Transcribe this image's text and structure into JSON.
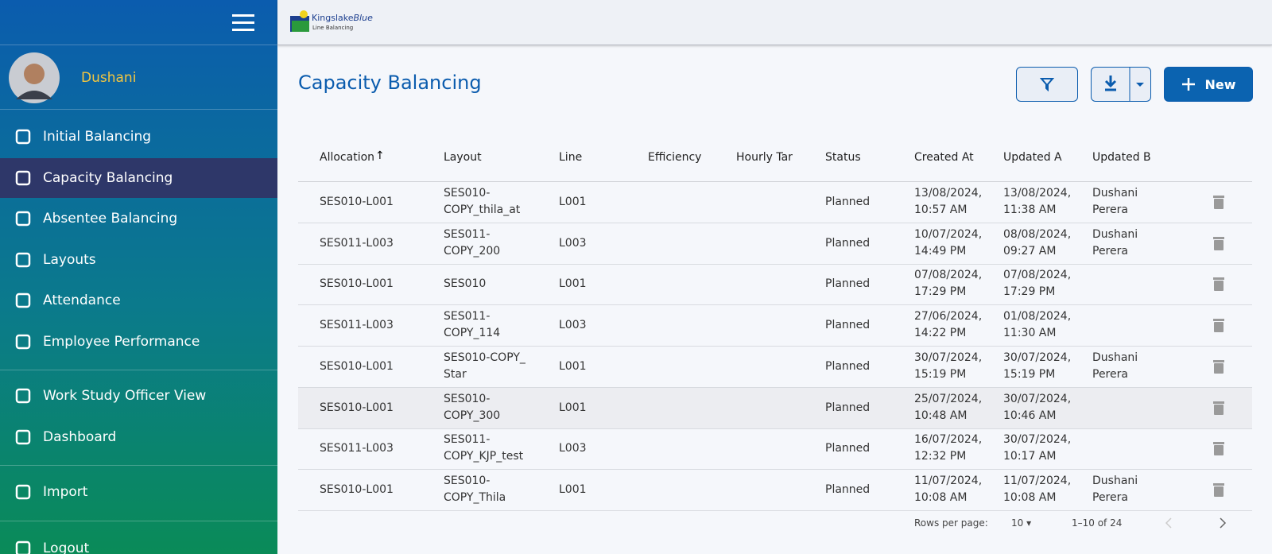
{
  "user": {
    "name": "Dushani"
  },
  "nav": [
    {
      "label": "Initial Balancing"
    },
    {
      "label": "Capacity Balancing"
    },
    {
      "label": "Absentee Balancing"
    },
    {
      "label": "Layouts"
    },
    {
      "label": "Attendance"
    },
    {
      "label": "Employee Performance"
    },
    {
      "label": "Work Study Officer View"
    },
    {
      "label": "Dashboard"
    },
    {
      "label": "Import"
    },
    {
      "label": "Logout"
    }
  ],
  "header": {
    "logo_name": "Kingslake",
    "logo_accent": "Blue",
    "logo_sub": "Line Balancing"
  },
  "page": {
    "title": "Capacity Balancing",
    "new_button": "New"
  },
  "table": {
    "columns": [
      "Allocation",
      "Layout",
      "Line",
      "Efficiency",
      "Hourly Tar",
      "Status",
      "Created At",
      "Updated A",
      "Updated B"
    ],
    "rows": [
      {
        "allocation": "SES010-L001",
        "layout": "SES010-COPY_thila_at",
        "line": "L001",
        "status": "Planned",
        "created": "13/08/2024, 10:57 AM",
        "updated": "13/08/2024, 11:38 AM",
        "updated_by": "Dushani Perera"
      },
      {
        "allocation": "SES011-L003",
        "layout": "SES011-COPY_200",
        "line": "L003",
        "status": "Planned",
        "created": "10/07/2024, 14:49 PM",
        "updated": "08/08/2024, 09:27 AM",
        "updated_by": "Dushani Perera"
      },
      {
        "allocation": "SES010-L001",
        "layout": "SES010",
        "line": "L001",
        "status": "Planned",
        "created": "07/08/2024, 17:29 PM",
        "updated": "07/08/2024, 17:29 PM"
      },
      {
        "allocation": "SES011-L003",
        "layout": "SES011-COPY_114",
        "line": "L003",
        "status": "Planned",
        "created": "27/06/2024, 14:22 PM",
        "updated": "01/08/2024, 11:30 AM"
      },
      {
        "allocation": "SES010-L001",
        "layout": "SES010-COPY_ Star",
        "line": "L001",
        "status": "Planned",
        "created": "30/07/2024, 15:19 PM",
        "updated": "30/07/2024, 15:19 PM",
        "updated_by": "Dushani Perera"
      },
      {
        "allocation": "SES010-L001",
        "layout": "SES010-COPY_300",
        "line": "L001",
        "status": "Planned",
        "created": "25/07/2024, 10:48 AM",
        "updated": "30/07/2024, 10:46 AM"
      },
      {
        "allocation": "SES011-L003",
        "layout": "SES011-COPY_KJP_test",
        "line": "L003",
        "status": "Planned",
        "created": "16/07/2024, 12:32 PM",
        "updated": "30/07/2024, 10:17 AM"
      },
      {
        "allocation": "SES010-L001",
        "layout": "SES010-COPY_Thila",
        "line": "L001",
        "status": "Planned",
        "created": "11/07/2024, 10:08 AM",
        "updated": "11/07/2024, 10:08 AM",
        "updated_by": "Dushani Perera"
      }
    ]
  },
  "pagination": {
    "rows_label": "Rows per page:",
    "rows_value": "10",
    "range": "1–10 of 24"
  }
}
